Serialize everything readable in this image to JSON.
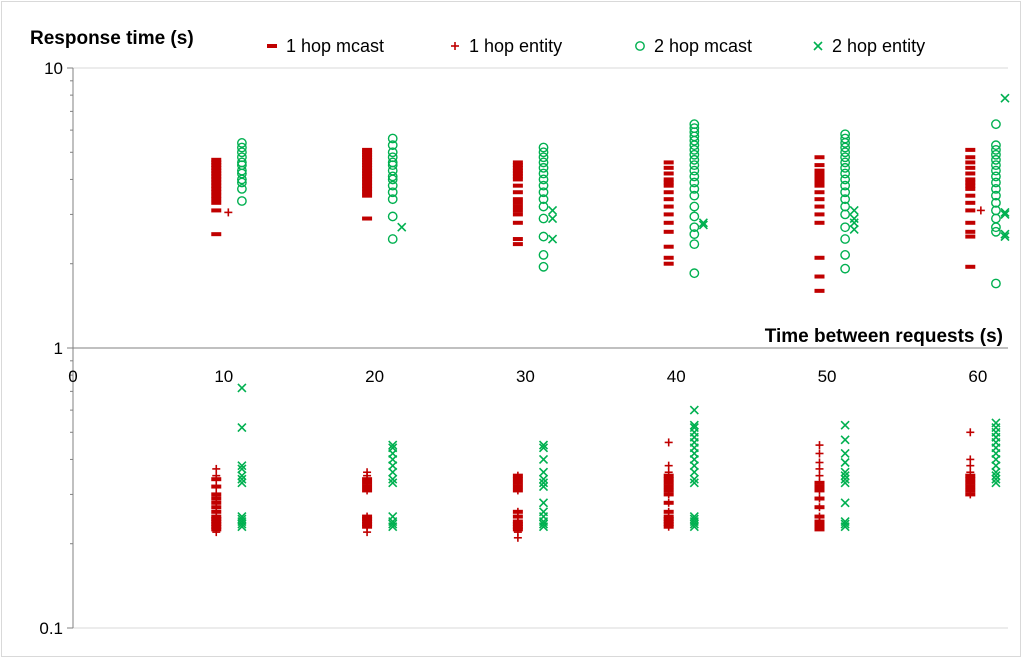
{
  "chart_data": {
    "type": "scatter",
    "ylabel": "Response time (s)",
    "xlabel": "Time  between requests (s)",
    "yscale": "log",
    "ylim": [
      0.1,
      10
    ],
    "xlim": [
      0,
      62
    ],
    "y_ticks": [
      "10",
      "1",
      "0.1"
    ],
    "x_ticks": [
      "0",
      "10",
      "20",
      "30",
      "40",
      "50",
      "60"
    ],
    "grid": "horizontal",
    "legend_position": "top",
    "series": [
      {
        "name": "1 hop mcast",
        "marker": "dash",
        "color": "#c00000",
        "points": [
          {
            "x": 9.5,
            "y": [
              4.7,
              4.6,
              4.5,
              4.4,
              4.3,
              4.2,
              4.1,
              4.0,
              3.9,
              3.8,
              3.7,
              3.6,
              3.5,
              3.4,
              3.3,
              3.1,
              2.55,
              0.34,
              0.32,
              0.3,
              0.29,
              0.28,
              0.27,
              0.26,
              0.25,
              0.245,
              0.24,
              0.235,
              0.23,
              0.225
            ]
          },
          {
            "x": 19.5,
            "y": [
              5.1,
              5.0,
              4.9,
              4.8,
              4.7,
              4.6,
              4.5,
              4.4,
              4.3,
              4.2,
              4.1,
              4.0,
              3.9,
              3.8,
              3.7,
              3.6,
              3.5,
              2.9,
              0.34,
              0.33,
              0.32,
              0.31,
              0.25,
              0.245,
              0.24,
              0.235,
              0.23
            ]
          },
          {
            "x": 29.5,
            "y": [
              4.6,
              4.5,
              4.4,
              4.3,
              4.2,
              4.1,
              4.0,
              3.8,
              3.6,
              3.4,
              3.3,
              3.2,
              3.1,
              3.0,
              2.8,
              2.45,
              2.35,
              0.35,
              0.34,
              0.33,
              0.32,
              0.31,
              0.26,
              0.25,
              0.24,
              0.235,
              0.23,
              0.225
            ]
          },
          {
            "x": 39.5,
            "y": [
              4.6,
              4.4,
              4.2,
              4.0,
              3.9,
              3.8,
              3.6,
              3.4,
              3.2,
              3.0,
              2.8,
              2.6,
              2.3,
              2.1,
              2.0,
              0.35,
              0.34,
              0.33,
              0.32,
              0.31,
              0.3,
              0.28,
              0.26,
              0.25,
              0.245,
              0.24,
              0.235,
              0.23
            ]
          },
          {
            "x": 49.5,
            "y": [
              4.8,
              4.5,
              4.3,
              4.2,
              4.1,
              4.0,
              3.9,
              3.8,
              3.6,
              3.4,
              3.2,
              3.0,
              2.8,
              2.1,
              1.8,
              1.6,
              0.33,
              0.32,
              0.31,
              0.29,
              0.27,
              0.25,
              0.24,
              0.235,
              0.23,
              0.225
            ]
          },
          {
            "x": 59.5,
            "y": [
              5.1,
              4.8,
              4.6,
              4.4,
              4.2,
              4.0,
              3.9,
              3.8,
              3.7,
              3.5,
              3.3,
              3.1,
              2.8,
              2.6,
              2.5,
              1.95,
              0.35,
              0.34,
              0.33,
              0.32,
              0.31,
              0.3
            ]
          }
        ]
      },
      {
        "name": "1 hop entity",
        "marker": "plus",
        "color": "#c00000",
        "points": [
          {
            "x": 9.5,
            "y": [
              0.37,
              0.35,
              0.34,
              0.32,
              0.3,
              0.29,
              0.28,
              0.27,
              0.26,
              0.25,
              0.24,
              0.23,
              0.22
            ]
          },
          {
            "x": 10.3,
            "y": [
              3.05
            ]
          },
          {
            "x": 19.5,
            "y": [
              0.36,
              0.35,
              0.34,
              0.33,
              0.32,
              0.31,
              0.25,
              0.24,
              0.23,
              0.22
            ]
          },
          {
            "x": 29.5,
            "y": [
              0.35,
              0.34,
              0.33,
              0.32,
              0.31,
              0.26,
              0.25,
              0.24,
              0.23,
              0.22,
              0.21
            ]
          },
          {
            "x": 39.5,
            "y": [
              0.46,
              0.38,
              0.36,
              0.34,
              0.32,
              0.3,
              0.28,
              0.26,
              0.25,
              0.24,
              0.23
            ]
          },
          {
            "x": 49.5,
            "y": [
              0.45,
              0.42,
              0.39,
              0.37,
              0.35,
              0.33,
              0.31,
              0.29,
              0.27,
              0.25,
              0.24,
              0.23
            ]
          },
          {
            "x": 59.5,
            "y": [
              0.5,
              0.4,
              0.38,
              0.36,
              0.34,
              0.33,
              0.32,
              0.31,
              0.3
            ]
          },
          {
            "x": 60.2,
            "y": [
              3.1
            ]
          }
        ]
      },
      {
        "name": "2 hop mcast",
        "marker": "circle",
        "color": "#00b050",
        "points": [
          {
            "x": 11.2,
            "y": [
              5.4,
              5.2,
              5.0,
              4.8,
              4.6,
              4.5,
              4.3,
              4.2,
              4.0,
              3.9,
              3.7,
              3.35
            ]
          },
          {
            "x": 21.2,
            "y": [
              5.6,
              5.3,
              5.0,
              4.8,
              4.6,
              4.5,
              4.3,
              4.1,
              4.0,
              3.8,
              3.6,
              3.4,
              2.95,
              2.45
            ]
          },
          {
            "x": 31.2,
            "y": [
              5.2,
              5.0,
              4.8,
              4.6,
              4.4,
              4.2,
              4.0,
              3.8,
              3.6,
              3.4,
              3.2,
              2.9,
              2.5,
              2.15,
              1.95
            ]
          },
          {
            "x": 41.2,
            "y": [
              6.3,
              6.1,
              5.9,
              5.7,
              5.5,
              5.3,
              5.1,
              4.9,
              4.7,
              4.5,
              4.3,
              4.1,
              3.9,
              3.7,
              3.5,
              3.2,
              2.95,
              2.7,
              2.55,
              2.35,
              1.85
            ]
          },
          {
            "x": 51.2,
            "y": [
              5.8,
              5.6,
              5.4,
              5.2,
              5.0,
              4.8,
              4.6,
              4.4,
              4.2,
              4.0,
              3.8,
              3.6,
              3.4,
              3.2,
              3.0,
              2.7,
              2.45,
              2.15,
              1.92
            ]
          },
          {
            "x": 61.2,
            "y": [
              6.3,
              5.3,
              5.1,
              4.9,
              4.7,
              4.5,
              4.3,
              4.1,
              3.9,
              3.7,
              3.5,
              3.3,
              3.1,
              2.9,
              2.7,
              2.6,
              1.7
            ]
          }
        ]
      },
      {
        "name": "2 hop entity",
        "marker": "cross",
        "color": "#00b050",
        "points": [
          {
            "x": 11.2,
            "y": [
              0.72,
              0.52,
              0.38,
              0.37,
              0.35,
              0.34,
              0.33,
              0.25,
              0.245,
              0.24,
              0.235,
              0.23
            ]
          },
          {
            "x": 21.8,
            "y": [
              2.7
            ]
          },
          {
            "x": 21.2,
            "y": [
              0.45,
              0.44,
              0.42,
              0.4,
              0.38,
              0.36,
              0.34,
              0.33,
              0.25,
              0.24,
              0.235,
              0.23
            ]
          },
          {
            "x": 31.8,
            "y": [
              3.1,
              2.9,
              2.45
            ]
          },
          {
            "x": 31.2,
            "y": [
              0.45,
              0.44,
              0.4,
              0.36,
              0.34,
              0.33,
              0.32,
              0.28,
              0.26,
              0.25,
              0.24,
              0.235,
              0.23
            ]
          },
          {
            "x": 41.8,
            "y": [
              2.8,
              2.75
            ]
          },
          {
            "x": 41.2,
            "y": [
              0.6,
              0.53,
              0.52,
              0.5,
              0.48,
              0.46,
              0.44,
              0.42,
              0.4,
              0.38,
              0.36,
              0.34,
              0.33,
              0.25,
              0.245,
              0.24,
              0.235,
              0.23
            ]
          },
          {
            "x": 51.8,
            "y": [
              3.1,
              2.9,
              2.8,
              2.65
            ]
          },
          {
            "x": 51.2,
            "y": [
              0.53,
              0.47,
              0.42,
              0.39,
              0.36,
              0.35,
              0.34,
              0.33,
              0.28,
              0.24,
              0.235,
              0.23
            ]
          },
          {
            "x": 61.8,
            "y": [
              7.8,
              3.05,
              3.0,
              2.55,
              2.5
            ]
          },
          {
            "x": 61.2,
            "y": [
              0.54,
              0.52,
              0.5,
              0.48,
              0.46,
              0.44,
              0.42,
              0.4,
              0.38,
              0.36,
              0.35,
              0.34,
              0.33
            ]
          }
        ]
      }
    ]
  }
}
